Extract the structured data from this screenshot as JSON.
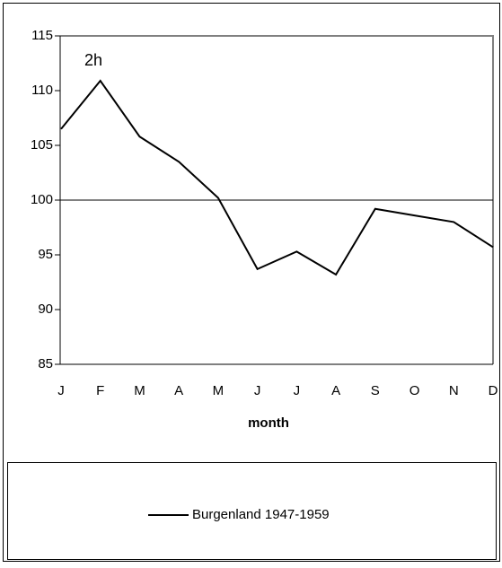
{
  "chart_data": {
    "type": "line",
    "annotation": "2h",
    "x_label": "month",
    "categories": [
      "J",
      "F",
      "M",
      "A",
      "M",
      "J",
      "J",
      "A",
      "S",
      "O",
      "N",
      "D"
    ],
    "series": [
      {
        "name": "Burgenland 1947-1959",
        "color": "#000000",
        "values": [
          106.5,
          110.9,
          105.8,
          103.5,
          100.2,
          93.7,
          95.3,
          93.2,
          99.2,
          98.6,
          98.0,
          95.7
        ]
      }
    ],
    "ylim": [
      85,
      115
    ],
    "yticks": [
      85,
      90,
      95,
      100,
      105,
      110,
      115
    ],
    "reference_line": 100
  }
}
